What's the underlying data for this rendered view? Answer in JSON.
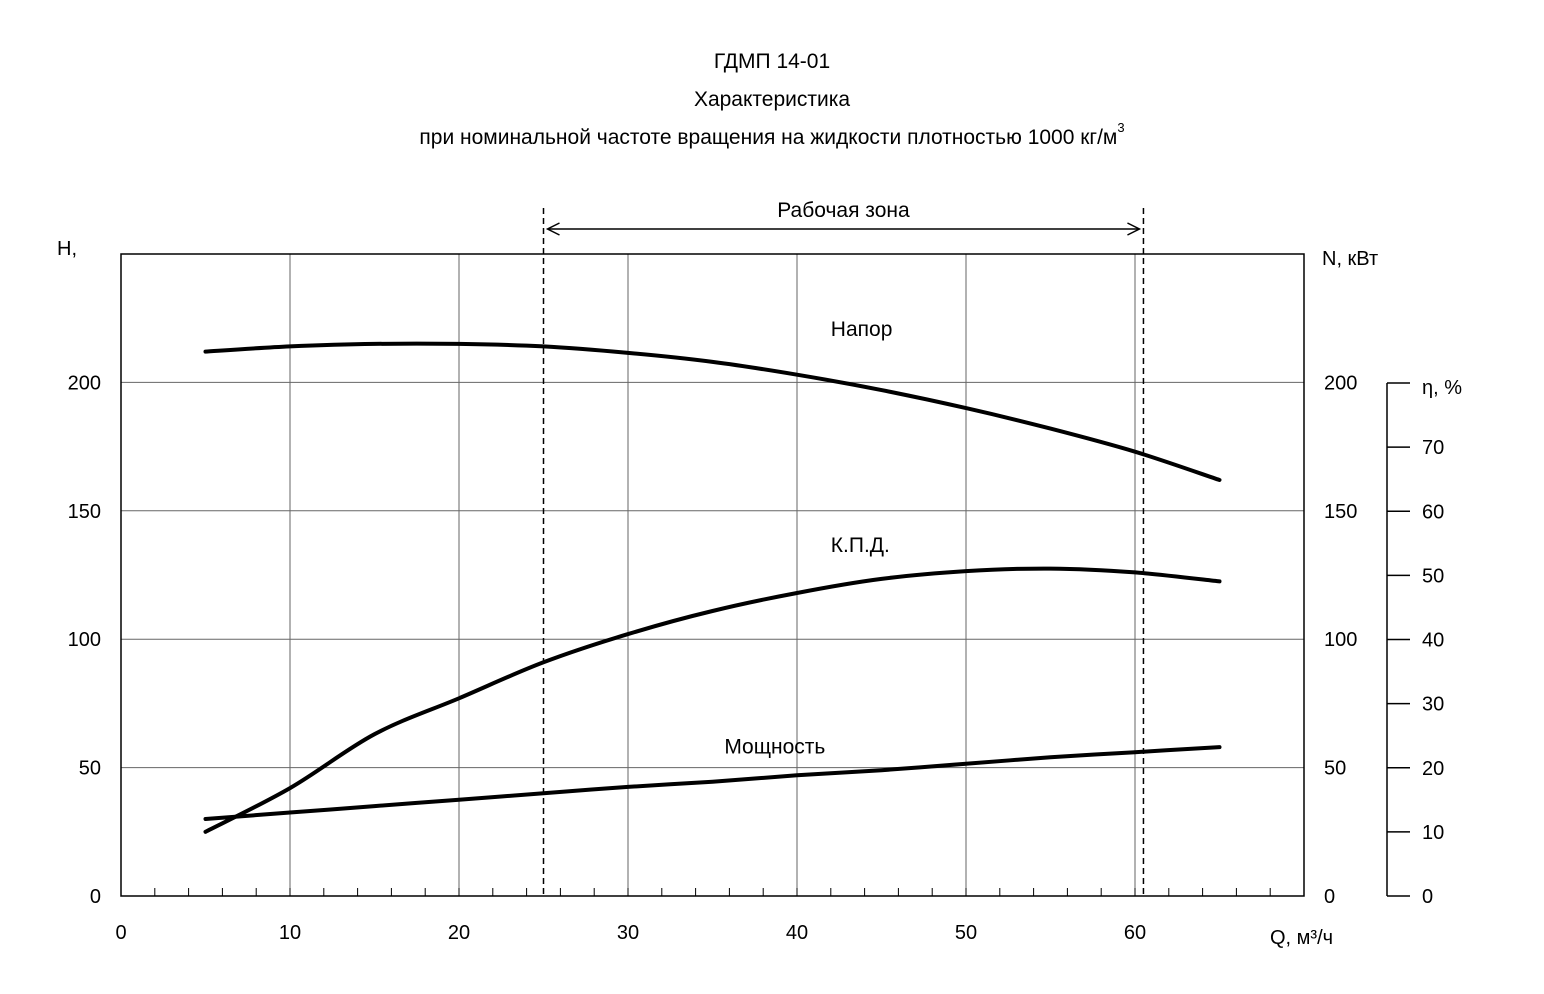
{
  "title": {
    "line1": "ГДМП 14-01",
    "line2": "Характеристика",
    "line3": "при номинальной  частоте  вращения  на жидкости  плотностью  1000  кг/м",
    "line3_sup": "3"
  },
  "chart_data": {
    "type": "line",
    "x_axis": {
      "label": "Q, м³/ч",
      "range": [
        0,
        70
      ],
      "ticks": [
        0,
        10,
        20,
        30,
        40,
        50,
        60
      ],
      "minor_step": 2
    },
    "y_axis_left": {
      "label": "H,",
      "range": [
        0,
        250
      ],
      "ticks": [
        0,
        50,
        100,
        150,
        200
      ]
    },
    "y_axis_right": {
      "label": "N, кВт",
      "ticks": [
        0,
        50,
        100,
        150,
        200
      ]
    },
    "y_axis_eta": {
      "label": "η, %",
      "range": [
        0,
        80
      ],
      "ticks": [
        0,
        10,
        20,
        30,
        40,
        50,
        60,
        70
      ]
    },
    "grid": true,
    "working_zone": {
      "label": "Рабочая  зона",
      "x_from": 25,
      "x_to": 60.5
    },
    "series": [
      {
        "name": "Напор",
        "x": [
          5,
          10,
          15,
          20,
          25,
          30,
          35,
          40,
          45,
          50,
          55,
          60,
          65
        ],
        "y": [
          212,
          214,
          215,
          215,
          214,
          211.5,
          208,
          203,
          197,
          190,
          182,
          173,
          162
        ],
        "axis": "left"
      },
      {
        "name": "К.П.Д.",
        "x": [
          5,
          10,
          15,
          20,
          25,
          30,
          35,
          40,
          45,
          50,
          55,
          60,
          65
        ],
        "y": [
          25,
          42,
          63,
          77,
          91,
          102,
          111,
          118,
          123.5,
          126.5,
          127.5,
          126,
          122.5
        ],
        "axis": "left"
      },
      {
        "name": "Мощность",
        "x": [
          5,
          10,
          15,
          20,
          25,
          30,
          35,
          40,
          45,
          50,
          55,
          60,
          65
        ],
        "y": [
          30,
          32.5,
          35,
          37.5,
          40,
          42.5,
          44.5,
          47,
          49,
          51.5,
          54,
          56,
          58
        ],
        "axis": "right"
      }
    ]
  }
}
